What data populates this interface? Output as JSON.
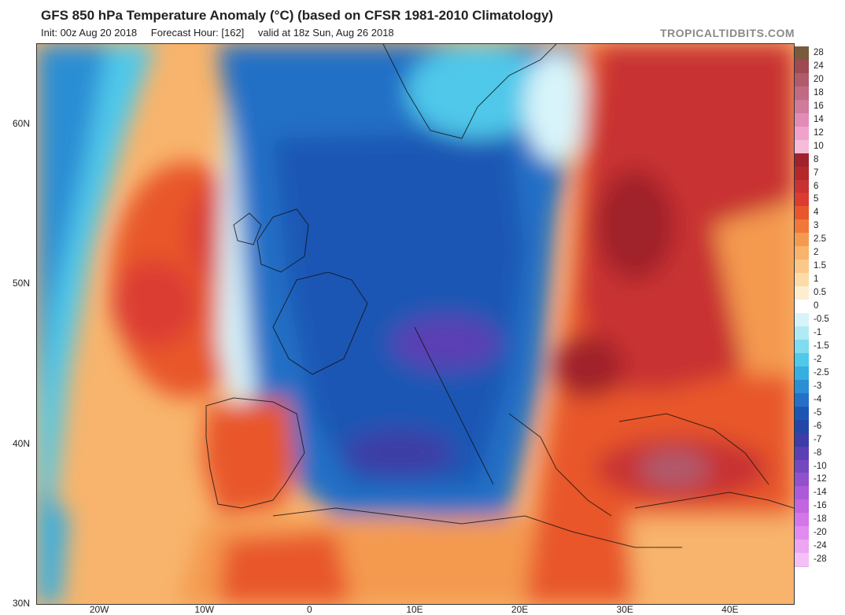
{
  "header": {
    "title": "GFS 850 hPa Temperature Anomaly (°C) (based on CFSR 1981-2010 Climatology)",
    "init": "Init: 00z Aug 20 2018",
    "forecast_hour": "Forecast Hour: [162]",
    "valid": "valid at 18z Sun, Aug 26 2018",
    "brand": "TROPICALTIDBITS.COM"
  },
  "map": {
    "lat_labels": [
      "60N",
      "50N",
      "40N",
      "30N"
    ],
    "lon_labels": [
      "20W",
      "10W",
      "0",
      "10E",
      "20E",
      "30E",
      "40E"
    ],
    "lat_values": [
      60,
      50,
      40,
      30
    ],
    "lon_values": [
      -20,
      -10,
      0,
      10,
      20,
      30,
      40
    ]
  },
  "colorbar": {
    "labels": [
      "28",
      "24",
      "20",
      "18",
      "16",
      "14",
      "12",
      "10",
      "8",
      "7",
      "6",
      "5",
      "4",
      "3",
      "2.5",
      "2",
      "1.5",
      "1",
      "0.5",
      "0",
      "-0.5",
      "-1",
      "-1.5",
      "-2",
      "-2.5",
      "-3",
      "-4",
      "-5",
      "-6",
      "-7",
      "-8",
      "-10",
      "-12",
      "-14",
      "-16",
      "-18",
      "-20",
      "-24",
      "-28"
    ],
    "colors": [
      "#7a5a3c",
      "#9e4a52",
      "#b05a6c",
      "#c06a84",
      "#d07a9c",
      "#e08cb6",
      "#f0a2cc",
      "#f6bcd8",
      "#a0222c",
      "#b4282c",
      "#c83232",
      "#dc3c30",
      "#e8562c",
      "#f07838",
      "#f49a50",
      "#f8b46c",
      "#fac888",
      "#fcdca8",
      "#fdeed0",
      "#ffffff",
      "#d8f4fa",
      "#b0eaf4",
      "#80dcee",
      "#50c8ea",
      "#38aee0",
      "#2c8ed4",
      "#2470c6",
      "#1c56b4",
      "#2446a6",
      "#3e3ca6",
      "#5a40b4",
      "#7648c0",
      "#9250cc",
      "#ac5ad8",
      "#c266e0",
      "#d276e8",
      "#e08cee",
      "#eca6f2",
      "#f4c0f6"
    ]
  }
}
